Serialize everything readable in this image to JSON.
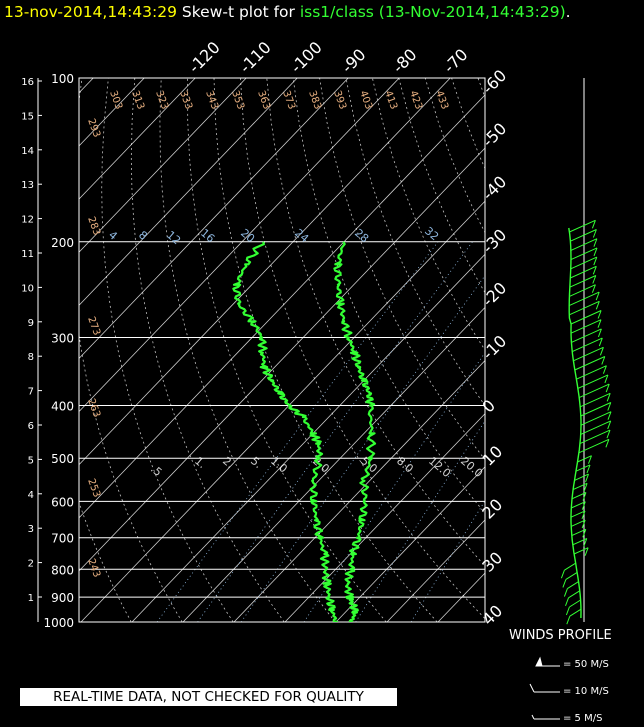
{
  "title": {
    "time": "13-nov-2014,14:43:29",
    "middle": " Skew-t plot for ",
    "source": "iss1/class (13-Nov-2014,14:43:29)",
    "end": "."
  },
  "colors": {
    "background": "#000000",
    "grid": "#ffffff",
    "trace": "#33ff33",
    "theta": "#e8b080",
    "mixing": "#8fb8e0"
  },
  "notice": "REAL-TIME DATA, NOT CHECKED FOR QUALITY",
  "winds_profile": {
    "title": "WINDS PROFILE",
    "legend": [
      {
        "symbol": "pennant",
        "label": "= 50 M/S"
      },
      {
        "symbol": "full-barb",
        "label": "= 10 M/S"
      },
      {
        "symbol": "half-barb",
        "label": "= 5 M/S"
      }
    ]
  },
  "chart_data": {
    "type": "line",
    "subtype": "skew-t log-p",
    "pressure_levels_hpa": [
      100,
      200,
      300,
      400,
      500,
      600,
      700,
      800,
      900,
      1000
    ],
    "height_km_ticks": [
      1,
      2,
      3,
      4,
      5,
      6,
      7,
      8,
      9,
      10,
      11,
      12,
      13,
      14,
      15,
      16
    ],
    "isotherm_labels_c": [
      -120,
      -110,
      -100,
      -90,
      -80,
      -70,
      -60,
      -50,
      -40,
      -30,
      -20,
      -10,
      0,
      10,
      20,
      30,
      40
    ],
    "theta_labels_k": [
      243,
      253,
      263,
      273,
      283,
      293,
      303,
      313,
      323,
      333,
      343,
      353,
      363,
      373,
      383,
      393,
      403,
      413,
      423,
      433
    ],
    "mixing_ratio_upper_labels": [
      "4",
      "8",
      "12",
      "16",
      "20",
      "24",
      "28",
      "32"
    ],
    "mixing_ratio_lower_labels": [
      ".5",
      "1.",
      "2.",
      "5.",
      "1.0",
      "2.0",
      "5.0",
      "8.0",
      "12.0",
      "20.0"
    ],
    "series": [
      {
        "name": "temperature",
        "points": [
          [
            1000,
            13
          ],
          [
            960,
            12
          ],
          [
            920,
            9.5
          ],
          [
            900,
            8
          ],
          [
            850,
            5
          ],
          [
            800,
            3
          ],
          [
            750,
            0.5
          ],
          [
            700,
            -1.5
          ],
          [
            650,
            -4
          ],
          [
            600,
            -7
          ],
          [
            550,
            -11
          ],
          [
            500,
            -14
          ],
          [
            450,
            -18.5
          ],
          [
            400,
            -24
          ],
          [
            380,
            -26.5
          ],
          [
            360,
            -30
          ],
          [
            340,
            -33.5
          ],
          [
            320,
            -37
          ],
          [
            300,
            -41
          ],
          [
            280,
            -45
          ],
          [
            260,
            -49
          ],
          [
            240,
            -53
          ],
          [
            220,
            -57
          ],
          [
            200,
            -60
          ]
        ]
      },
      {
        "name": "dewpoint",
        "points": [
          [
            1000,
            10
          ],
          [
            950,
            7
          ],
          [
            900,
            4
          ],
          [
            850,
            1
          ],
          [
            800,
            -2
          ],
          [
            750,
            -5
          ],
          [
            700,
            -9
          ],
          [
            650,
            -13
          ],
          [
            600,
            -17
          ],
          [
            550,
            -21
          ],
          [
            500,
            -24
          ],
          [
            470,
            -27
          ],
          [
            450,
            -30
          ],
          [
            420,
            -35
          ],
          [
            400,
            -40
          ],
          [
            380,
            -44
          ],
          [
            360,
            -48
          ],
          [
            340,
            -52
          ],
          [
            320,
            -55
          ],
          [
            300,
            -58
          ],
          [
            280,
            -63
          ],
          [
            260,
            -69
          ],
          [
            240,
            -73
          ],
          [
            220,
            -75
          ],
          [
            200,
            -76
          ]
        ]
      }
    ],
    "wind_profile_barbs": 42
  }
}
